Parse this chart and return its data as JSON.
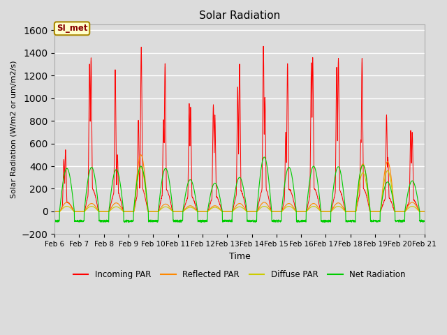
{
  "title": "Solar Radiation",
  "xlabel": "Time",
  "ylabel": "Solar Radiation (W/m2 or um/m2/s)",
  "ylim": [
    -200,
    1650
  ],
  "yticks": [
    -200,
    0,
    200,
    400,
    600,
    800,
    1000,
    1200,
    1400,
    1600
  ],
  "bg_color": "#dcdcdc",
  "annotation_label": "SI_met",
  "annotation_bg": "#ffffcc",
  "annotation_border": "#aa8800",
  "annotation_text_color": "#880000",
  "colors": {
    "incoming": "#ff0000",
    "reflected": "#ff8800",
    "diffuse": "#cccc00",
    "net": "#00cc00"
  },
  "legend_labels": [
    "Incoming PAR",
    "Reflected PAR",
    "Diffuse PAR",
    "Net Radiation"
  ],
  "x_tick_labels": [
    "Feb 6",
    "Feb 7",
    "Feb 8",
    "Feb 9",
    "Feb 10",
    "Feb 11",
    "Feb 12",
    "Feb 13",
    "Feb 14",
    "Feb 15",
    "Feb 16",
    "Feb 17",
    "Feb 18",
    "Feb 19",
    "Feb 20",
    "Feb 21"
  ],
  "n_days": 15,
  "pts_per_day": 144
}
